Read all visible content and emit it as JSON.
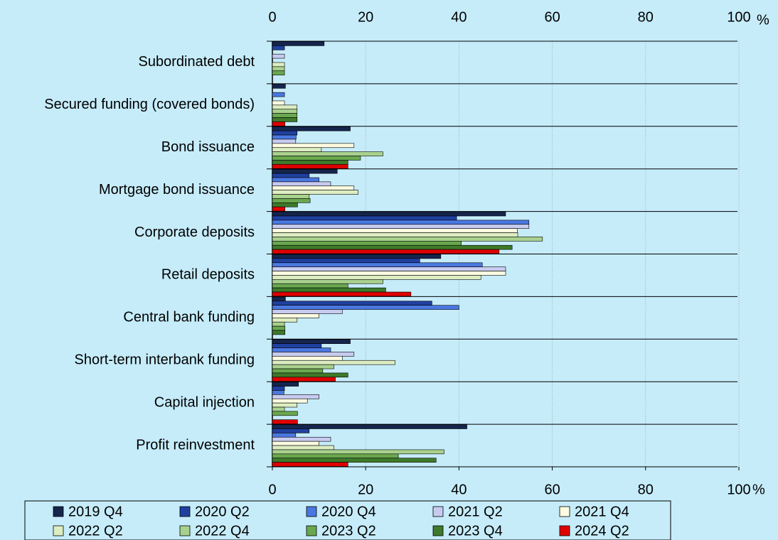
{
  "chart_data": {
    "type": "hbar",
    "x_unit": "%",
    "categories": [
      "Subordinated debt",
      "Secured funding (covered bonds)",
      "Bond issuance",
      "Mortgage bond issuance",
      "Corporate deposits",
      "Retail deposits",
      "Central bank funding",
      "Short-term interbank funding",
      "Capital injection",
      "Profit reinvestment"
    ],
    "series": [
      {
        "name": "2019 Q4",
        "color": "#15254d",
        "values": [
          11.1,
          2.8,
          16.7,
          13.9,
          50,
          36.1,
          2.8,
          16.7,
          5.6,
          41.7
        ]
      },
      {
        "name": "2020 Q2",
        "color": "#2040a0",
        "values": [
          2.6,
          0,
          5.3,
          7.9,
          39.5,
          31.6,
          34.2,
          10.5,
          2.6,
          7.9
        ]
      },
      {
        "name": "2020 Q4",
        "color": "#4a78e0",
        "values": [
          0,
          2.6,
          5.1,
          10,
          55,
          45,
          40,
          12.5,
          2.5,
          5
        ]
      },
      {
        "name": "2021 Q2",
        "color": "#c8cbf0",
        "values": [
          2.6,
          0,
          5,
          12.5,
          55,
          50,
          15,
          17.5,
          10,
          12.5
        ]
      },
      {
        "name": "2021 Q4",
        "color": "#fdfbe0",
        "values": [
          0,
          2.6,
          17.5,
          17.5,
          52.5,
          50,
          10,
          15,
          7.5,
          10
        ]
      },
      {
        "name": "2022 Q2",
        "color": "#dcedc2",
        "values": [
          2.6,
          5.3,
          10.5,
          18.4,
          52.6,
          44.7,
          5.3,
          26.3,
          5.3,
          13.2
        ]
      },
      {
        "name": "2022 Q4",
        "color": "#a9d18e",
        "values": [
          2.6,
          5.3,
          23.7,
          7.9,
          57.9,
          23.7,
          2.6,
          13.2,
          2.6,
          36.8
        ]
      },
      {
        "name": "2023 Q2",
        "color": "#6aa84f",
        "values": [
          2.6,
          5.3,
          18.9,
          8.1,
          40.5,
          16.2,
          2.7,
          10.8,
          5.4,
          27
        ]
      },
      {
        "name": "2023 Q4",
        "color": "#3d7a2a",
        "values": [
          0,
          5.3,
          16.2,
          5.4,
          51.4,
          24.3,
          2.7,
          16.2,
          0,
          35.1
        ]
      },
      {
        "name": "2024 Q2",
        "color": "#e00000",
        "values": [
          0,
          2.7,
          16.2,
          2.7,
          48.6,
          29.7,
          0,
          13.5,
          5.4,
          16.2
        ]
      }
    ],
    "xlim": [
      0,
      100
    ],
    "xticks": [
      0,
      20,
      40,
      60,
      80,
      100
    ],
    "grid": true
  }
}
